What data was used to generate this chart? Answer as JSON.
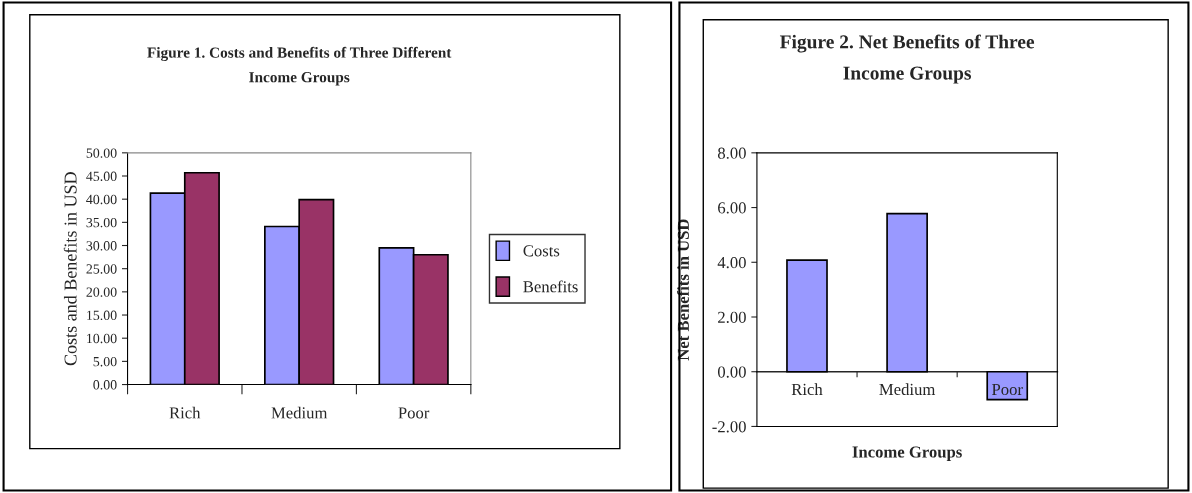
{
  "chart_data": [
    {
      "type": "bar",
      "title": "Figure 1. Costs and Benefits of Three Different\nIncome Groups",
      "ylabel": "Costs and Benefits in USD",
      "categories": [
        "Rich",
        "Medium",
        "Poor"
      ],
      "series": [
        {
          "name": "Costs",
          "color": "#9999ff",
          "values": [
            41.3,
            34.1,
            29.5
          ]
        },
        {
          "name": "Benefits",
          "color": "#993366",
          "values": [
            45.7,
            39.9,
            28.0
          ]
        }
      ],
      "ylim": [
        0,
        50
      ],
      "yticks": [
        {
          "value": 0,
          "label": "0.00"
        },
        {
          "value": 5,
          "label": "5.00"
        },
        {
          "value": 10,
          "label": "10.00"
        },
        {
          "value": 15,
          "label": "15.00"
        },
        {
          "value": 20,
          "label": "20.00"
        },
        {
          "value": 25,
          "label": "25.00"
        },
        {
          "value": 30,
          "label": "30.00"
        },
        {
          "value": 35,
          "label": "35.00"
        },
        {
          "value": 40,
          "label": "40.00"
        },
        {
          "value": 45,
          "label": "45.00"
        },
        {
          "value": 50,
          "label": "50.00"
        }
      ],
      "grid": false,
      "legend": "right"
    },
    {
      "type": "bar",
      "title": "Figure 2. Net Benefits of Three\nIncome Groups",
      "ylabel": "Net Benefits in USD",
      "xlabel": "Income Groups",
      "categories": [
        "Rich",
        "Medium",
        "Poor"
      ],
      "series": [
        {
          "color": "#9999ff",
          "values": [
            4.08,
            5.78,
            -1.02
          ]
        }
      ],
      "ylim": [
        -2,
        8
      ],
      "yticks": [
        {
          "value": -2,
          "label": "-2.00"
        },
        {
          "value": 0,
          "label": "0.00"
        },
        {
          "value": 2,
          "label": "2.00"
        },
        {
          "value": 4,
          "label": "4.00"
        },
        {
          "value": 6,
          "label": "6.00"
        },
        {
          "value": 8,
          "label": "8.00"
        }
      ],
      "grid": false
    }
  ]
}
